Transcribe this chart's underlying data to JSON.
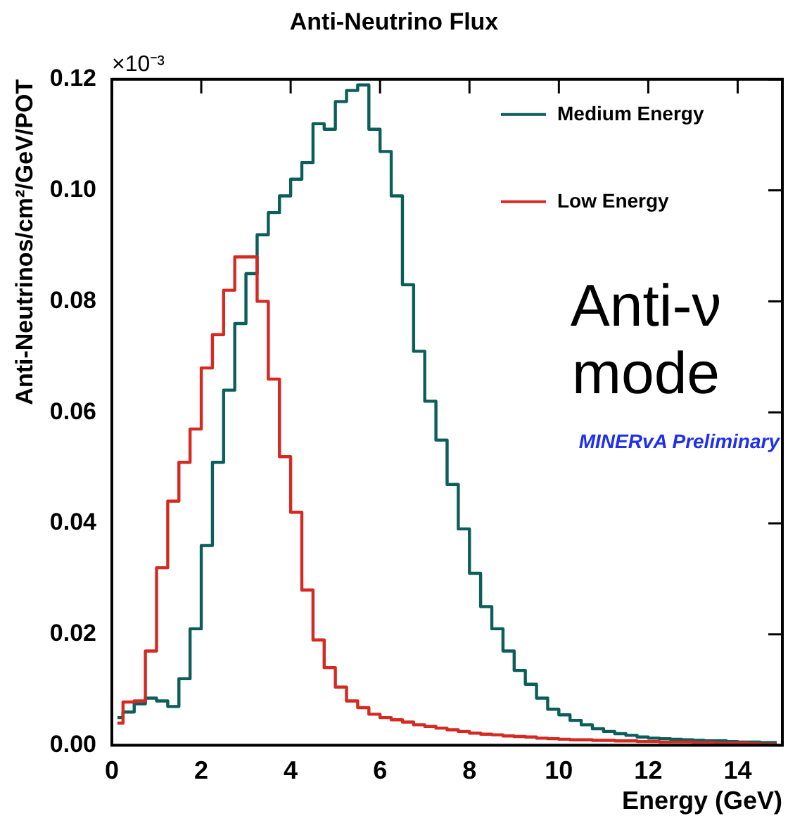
{
  "chart_data": {
    "type": "step",
    "title": "Anti-Neutrino Flux",
    "xlabel": "Energy (GeV)",
    "ylabel": "Anti-Neutrinos/cm²/GeV/POT",
    "x": [
      0.125,
      0.375,
      0.625,
      0.875,
      1.125,
      1.375,
      1.625,
      1.875,
      2.125,
      2.375,
      2.625,
      2.875,
      3.125,
      3.375,
      3.625,
      3.875,
      4.125,
      4.375,
      4.625,
      4.875,
      5.125,
      5.375,
      5.625,
      5.875,
      6.125,
      6.375,
      6.625,
      6.875,
      7.125,
      7.375,
      7.625,
      7.875,
      8.125,
      8.375,
      8.625,
      8.875,
      9.125,
      9.375,
      9.625,
      9.875,
      10.125,
      10.375,
      10.625,
      10.875,
      11.125,
      11.375,
      11.625,
      11.875,
      12.125,
      12.375,
      12.625,
      12.875,
      13.125,
      13.375,
      13.625,
      13.875,
      14.125,
      14.375,
      14.625,
      14.875
    ],
    "series": [
      {
        "name": "Medium Energy",
        "color": "#0b5e5a",
        "values": [
          0.005,
          0.006,
          0.0075,
          0.0085,
          0.008,
          0.007,
          0.012,
          0.021,
          0.036,
          0.051,
          0.064,
          0.076,
          0.085,
          0.092,
          0.096,
          0.099,
          0.102,
          0.105,
          0.112,
          0.111,
          0.116,
          0.118,
          0.119,
          0.111,
          0.107,
          0.099,
          0.083,
          0.071,
          0.062,
          0.055,
          0.047,
          0.039,
          0.031,
          0.025,
          0.021,
          0.017,
          0.0135,
          0.011,
          0.0085,
          0.0065,
          0.0055,
          0.0045,
          0.0037,
          0.003,
          0.0025,
          0.0021,
          0.0018,
          0.0015,
          0.0013,
          0.0012,
          0.0011,
          0.001,
          0.0009,
          0.0008,
          0.0008,
          0.0007,
          0.0006,
          0.0006,
          0.0005,
          0.0005
        ]
      },
      {
        "name": "Low Energy",
        "color": "#d42a22",
        "values": [
          0.004,
          0.0078,
          0.008,
          0.017,
          0.032,
          0.044,
          0.051,
          0.057,
          0.068,
          0.074,
          0.082,
          0.088,
          0.088,
          0.08,
          0.066,
          0.052,
          0.042,
          0.028,
          0.019,
          0.014,
          0.0105,
          0.008,
          0.0068,
          0.0056,
          0.005,
          0.0046,
          0.0042,
          0.0037,
          0.0034,
          0.0031,
          0.0028,
          0.0025,
          0.0022,
          0.002,
          0.0019,
          0.0017,
          0.0016,
          0.0015,
          0.0013,
          0.0012,
          0.0011,
          0.001,
          0.001,
          0.0009,
          0.0009,
          0.0008,
          0.0008,
          0.0007,
          0.0007,
          0.0006,
          0.0006,
          0.0006,
          0.0005,
          0.0005,
          0.0004,
          0.0004,
          0.0004,
          0.0003,
          0.0002,
          0.0002
        ]
      }
    ],
    "xlim": [
      0,
      15
    ],
    "xticks": [
      0,
      2,
      4,
      6,
      8,
      10,
      12,
      14
    ],
    "ylim": [
      0,
      0.12
    ],
    "yticks": [
      {
        "value": 0,
        "label": "0.00"
      },
      {
        "value": 0.02,
        "label": "0.02"
      },
      {
        "value": 0.04,
        "label": "0.04"
      },
      {
        "value": 0.06,
        "label": "0.06"
      },
      {
        "value": 0.08,
        "label": "0.08"
      },
      {
        "value": 0.1,
        "label": "0.10"
      },
      {
        "value": 0.12,
        "label": "0.12"
      }
    ],
    "legend": "top right",
    "annotations": [
      "×10⁻³",
      "Anti-ν mode",
      "MINERvA Preliminary"
    ]
  }
}
